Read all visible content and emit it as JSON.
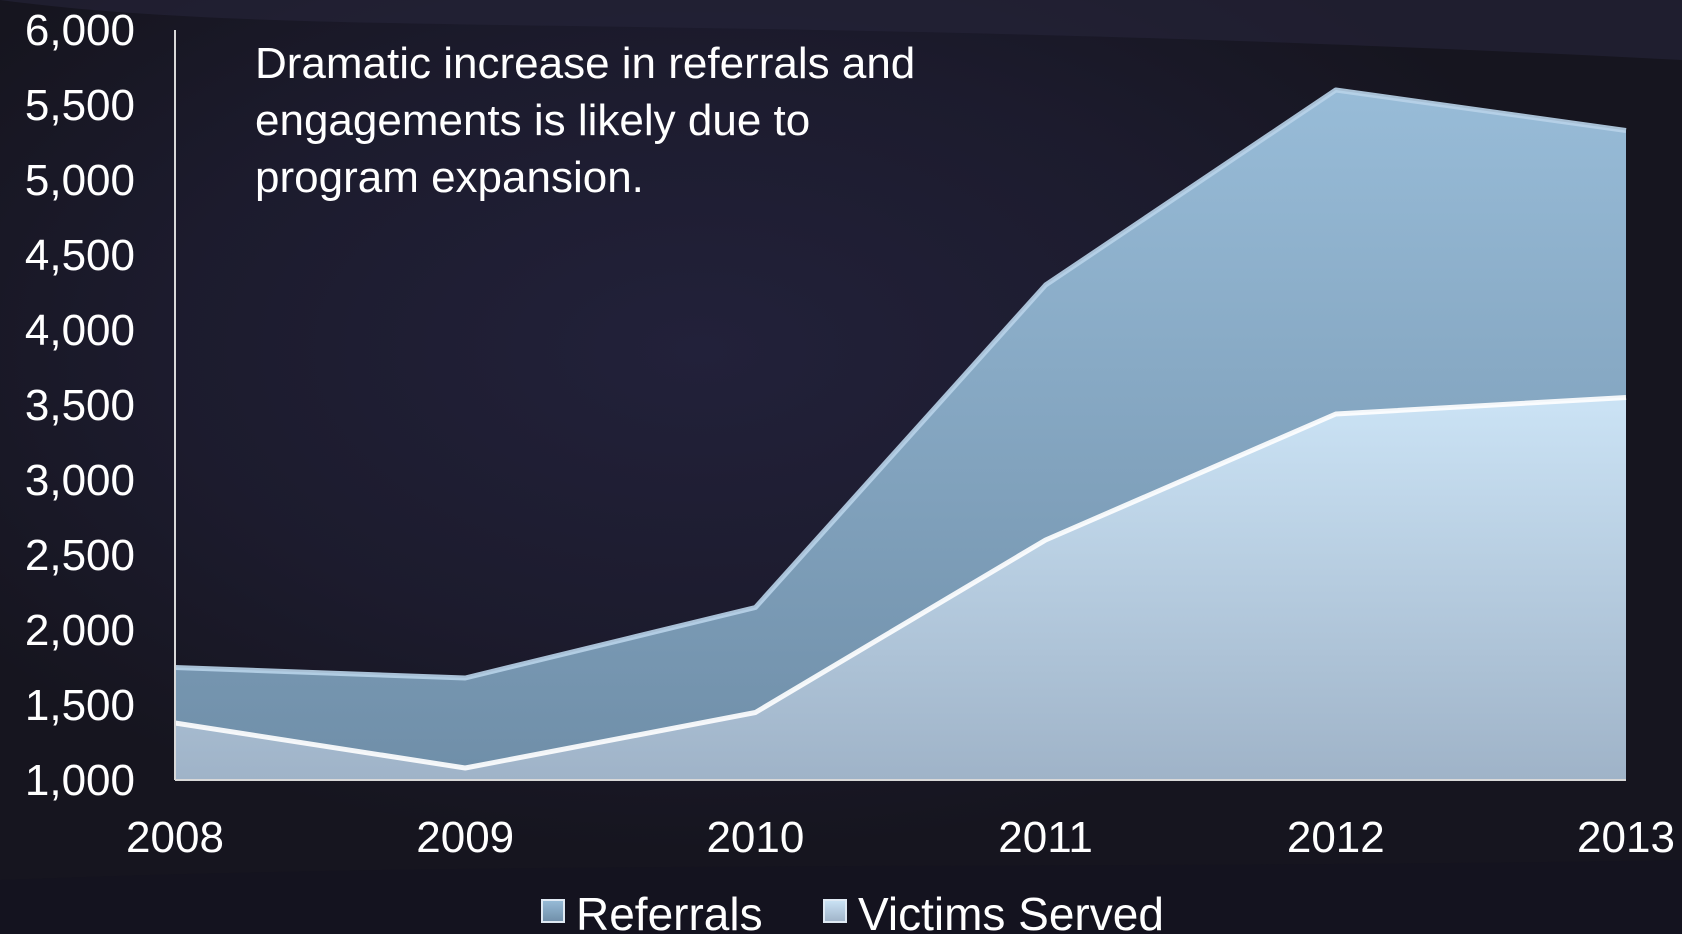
{
  "chart_data": {
    "type": "area",
    "stacked": false,
    "x": [
      "2008",
      "2009",
      "2010",
      "2011",
      "2012",
      "2013"
    ],
    "series": [
      {
        "name": "Referrals",
        "values": [
          1750,
          1680,
          2150,
          4300,
          5600,
          5330
        ],
        "color": "#8fb1cc"
      },
      {
        "name": "Victims Served",
        "values": [
          1380,
          1080,
          1450,
          2600,
          3440,
          3550
        ],
        "color": "#bcd6ea"
      }
    ],
    "ylim": [
      1000,
      6000
    ],
    "yticks": [
      "1,000",
      "1,500",
      "2,000",
      "2,500",
      "3,000",
      "3,500",
      "4,000",
      "4,500",
      "5,000",
      "5,500",
      "6,000"
    ],
    "annotation": [
      "Dramatic increase in referrals and",
      "engagements is likely due to",
      "program expansion."
    ],
    "legend_position": "bottom",
    "grid": false
  },
  "colors": {
    "background": "#1c1b2b",
    "text": "#ffffff",
    "axis": "#d8d8d8"
  }
}
